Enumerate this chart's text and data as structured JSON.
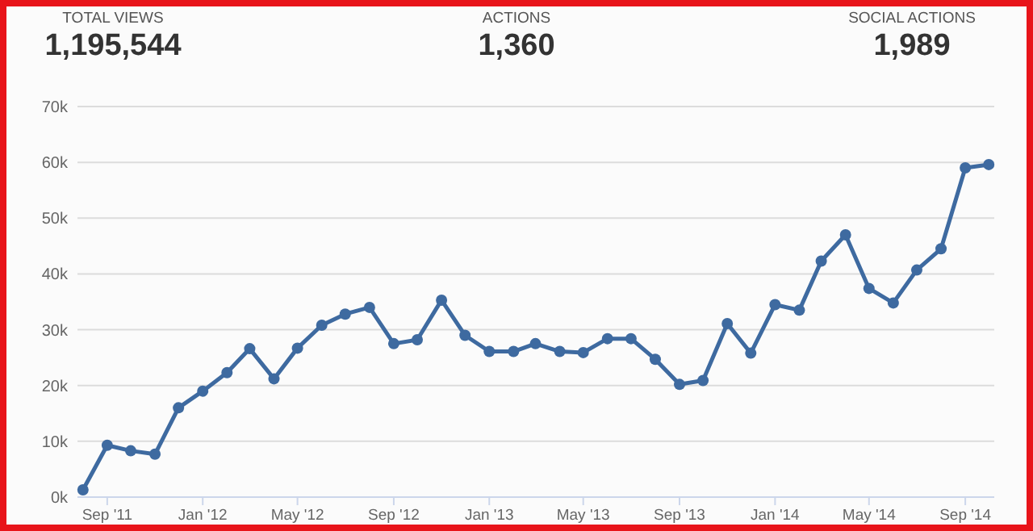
{
  "chart_data": {
    "type": "line",
    "annotations": [
      "TOTAL VIEWS",
      "1,195,544",
      "ACTIONS",
      "1,360",
      "SOCIAL ACTIONS",
      "1,989"
    ],
    "x": [
      "2011-08",
      "2011-09",
      "2011-10",
      "2011-11",
      "2011-12",
      "2012-01",
      "2012-02",
      "2012-03",
      "2012-04",
      "2012-05",
      "2012-06",
      "2012-07",
      "2012-08",
      "2012-09",
      "2012-10",
      "2012-11",
      "2012-12",
      "2013-01",
      "2013-02",
      "2013-03",
      "2013-04",
      "2013-05",
      "2013-06",
      "2013-07",
      "2013-08",
      "2013-09",
      "2013-10",
      "2013-11",
      "2013-12",
      "2014-01",
      "2014-02",
      "2014-03",
      "2014-04",
      "2014-05",
      "2014-06",
      "2014-07",
      "2014-08",
      "2014-09",
      "2014-10"
    ],
    "series": [
      {
        "color": "#3e6aa0",
        "values": [
          1300,
          9300,
          8300,
          7700,
          16000,
          19000,
          22300,
          26600,
          21200,
          26700,
          30800,
          32800,
          34000,
          27500,
          28200,
          35300,
          29000,
          26100,
          26100,
          27500,
          26100,
          25900,
          28400,
          28400,
          24700,
          20200,
          20900,
          31100,
          25800,
          34500,
          33500,
          42300,
          47000,
          37400,
          34800,
          40700,
          44500,
          59000,
          59600
        ]
      }
    ],
    "xlim": [
      "2011-07-25",
      "2014-10-08"
    ],
    "xticks": [
      {
        "value": "2011-09",
        "label": "Sep '11"
      },
      {
        "value": "2012-01",
        "label": "Jan '12"
      },
      {
        "value": "2012-05",
        "label": "May '12"
      },
      {
        "value": "2012-09",
        "label": "Sep '12"
      },
      {
        "value": "2013-01",
        "label": "Jan '13"
      },
      {
        "value": "2013-05",
        "label": "May '13"
      },
      {
        "value": "2013-09",
        "label": "Sep '13"
      },
      {
        "value": "2014-01",
        "label": "Jan '14"
      },
      {
        "value": "2014-05",
        "label": "May '14"
      },
      {
        "value": "2014-09",
        "label": "Sep '14"
      }
    ],
    "ylim": [
      0,
      70000
    ],
    "yticks": [
      {
        "value": 0,
        "label": "0k"
      },
      {
        "value": 10000,
        "label": "10k"
      },
      {
        "value": 20000,
        "label": "20k"
      },
      {
        "value": 30000,
        "label": "30k"
      },
      {
        "value": 40000,
        "label": "40k"
      },
      {
        "value": 50000,
        "label": "50k"
      },
      {
        "value": 60000,
        "label": "60k"
      },
      {
        "value": 70000,
        "label": "70k"
      }
    ],
    "grid": "y",
    "marker": "circle",
    "line_style": "solid"
  }
}
